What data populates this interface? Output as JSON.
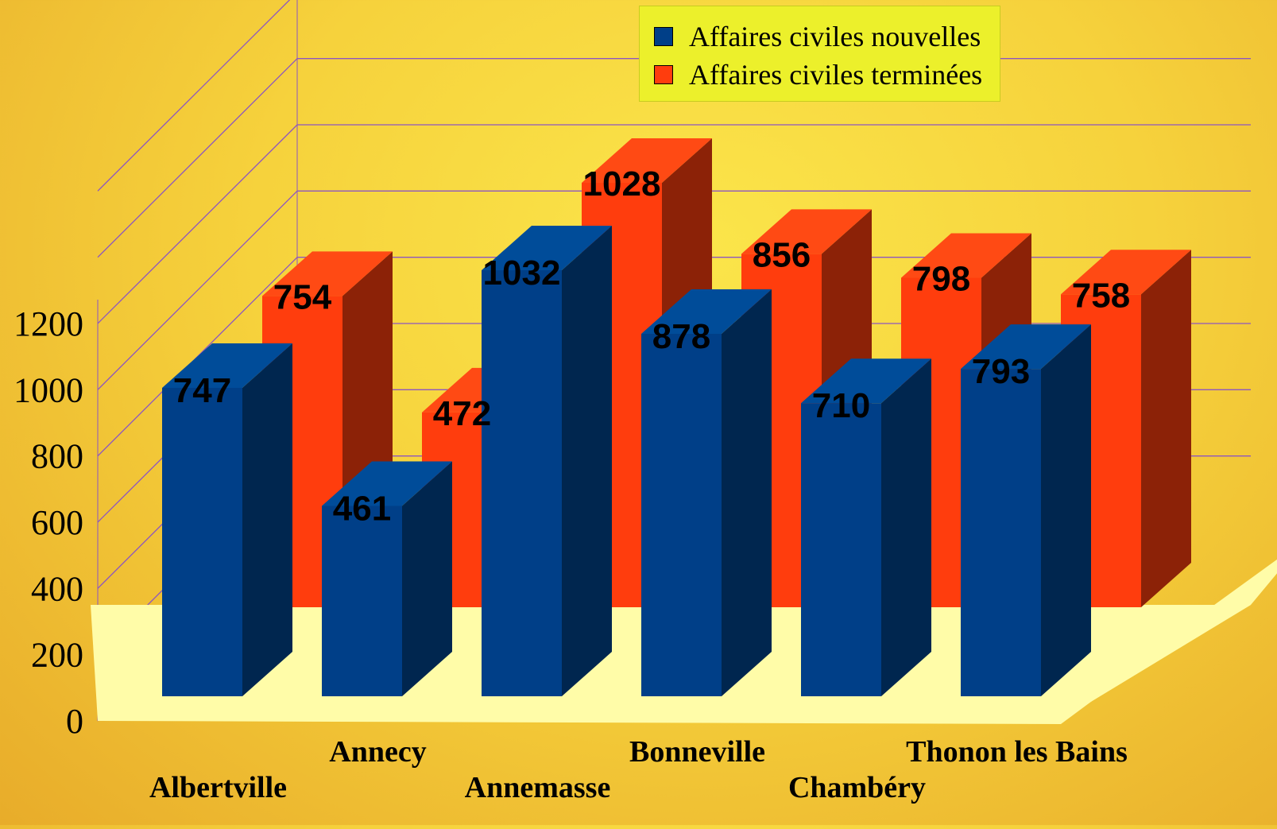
{
  "chart_data": {
    "type": "bar",
    "title": "",
    "xlabel": "",
    "ylabel": "",
    "ylim": [
      0,
      1200
    ],
    "yticks": [
      0,
      200,
      400,
      600,
      800,
      1000,
      1200
    ],
    "grid": true,
    "legend_position": "top",
    "categories": [
      "Albertville",
      "Annecy",
      "Annemasse",
      "Bonneville",
      "Chambéry",
      "Thonon les Bains"
    ],
    "series": [
      {
        "name": "Affaires civiles nouvelles",
        "color": "#003f88",
        "values": [
          747,
          461,
          1032,
          878,
          710,
          793
        ]
      },
      {
        "name": "Affaires civiles terminées",
        "color": "#ff3d0d",
        "values": [
          754,
          472,
          1028,
          856,
          798,
          758
        ]
      }
    ]
  },
  "colors": {
    "front_blue": "#003f88",
    "top_blue": "#004c99",
    "side_blue": "#00264f",
    "front_red": "#ff3d0d",
    "top_red": "#ff4a14",
    "side_red": "#8c2207",
    "floor": "#fffca8",
    "grid": "#8d56c0"
  }
}
